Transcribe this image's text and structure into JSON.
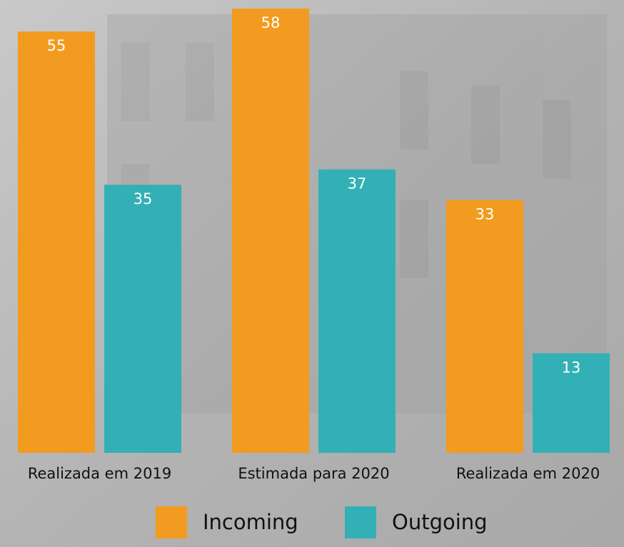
{
  "chart_data": {
    "type": "bar",
    "categories": [
      "Realizada em 2019",
      "Estimada para 2020",
      "Realizada em 2020"
    ],
    "series": [
      {
        "name": "Incoming",
        "color": "#f29b20",
        "values": [
          55,
          58,
          33
        ]
      },
      {
        "name": "Outgoing",
        "color": "#33b0b5",
        "values": [
          35,
          37,
          13
        ]
      }
    ]
  }
}
